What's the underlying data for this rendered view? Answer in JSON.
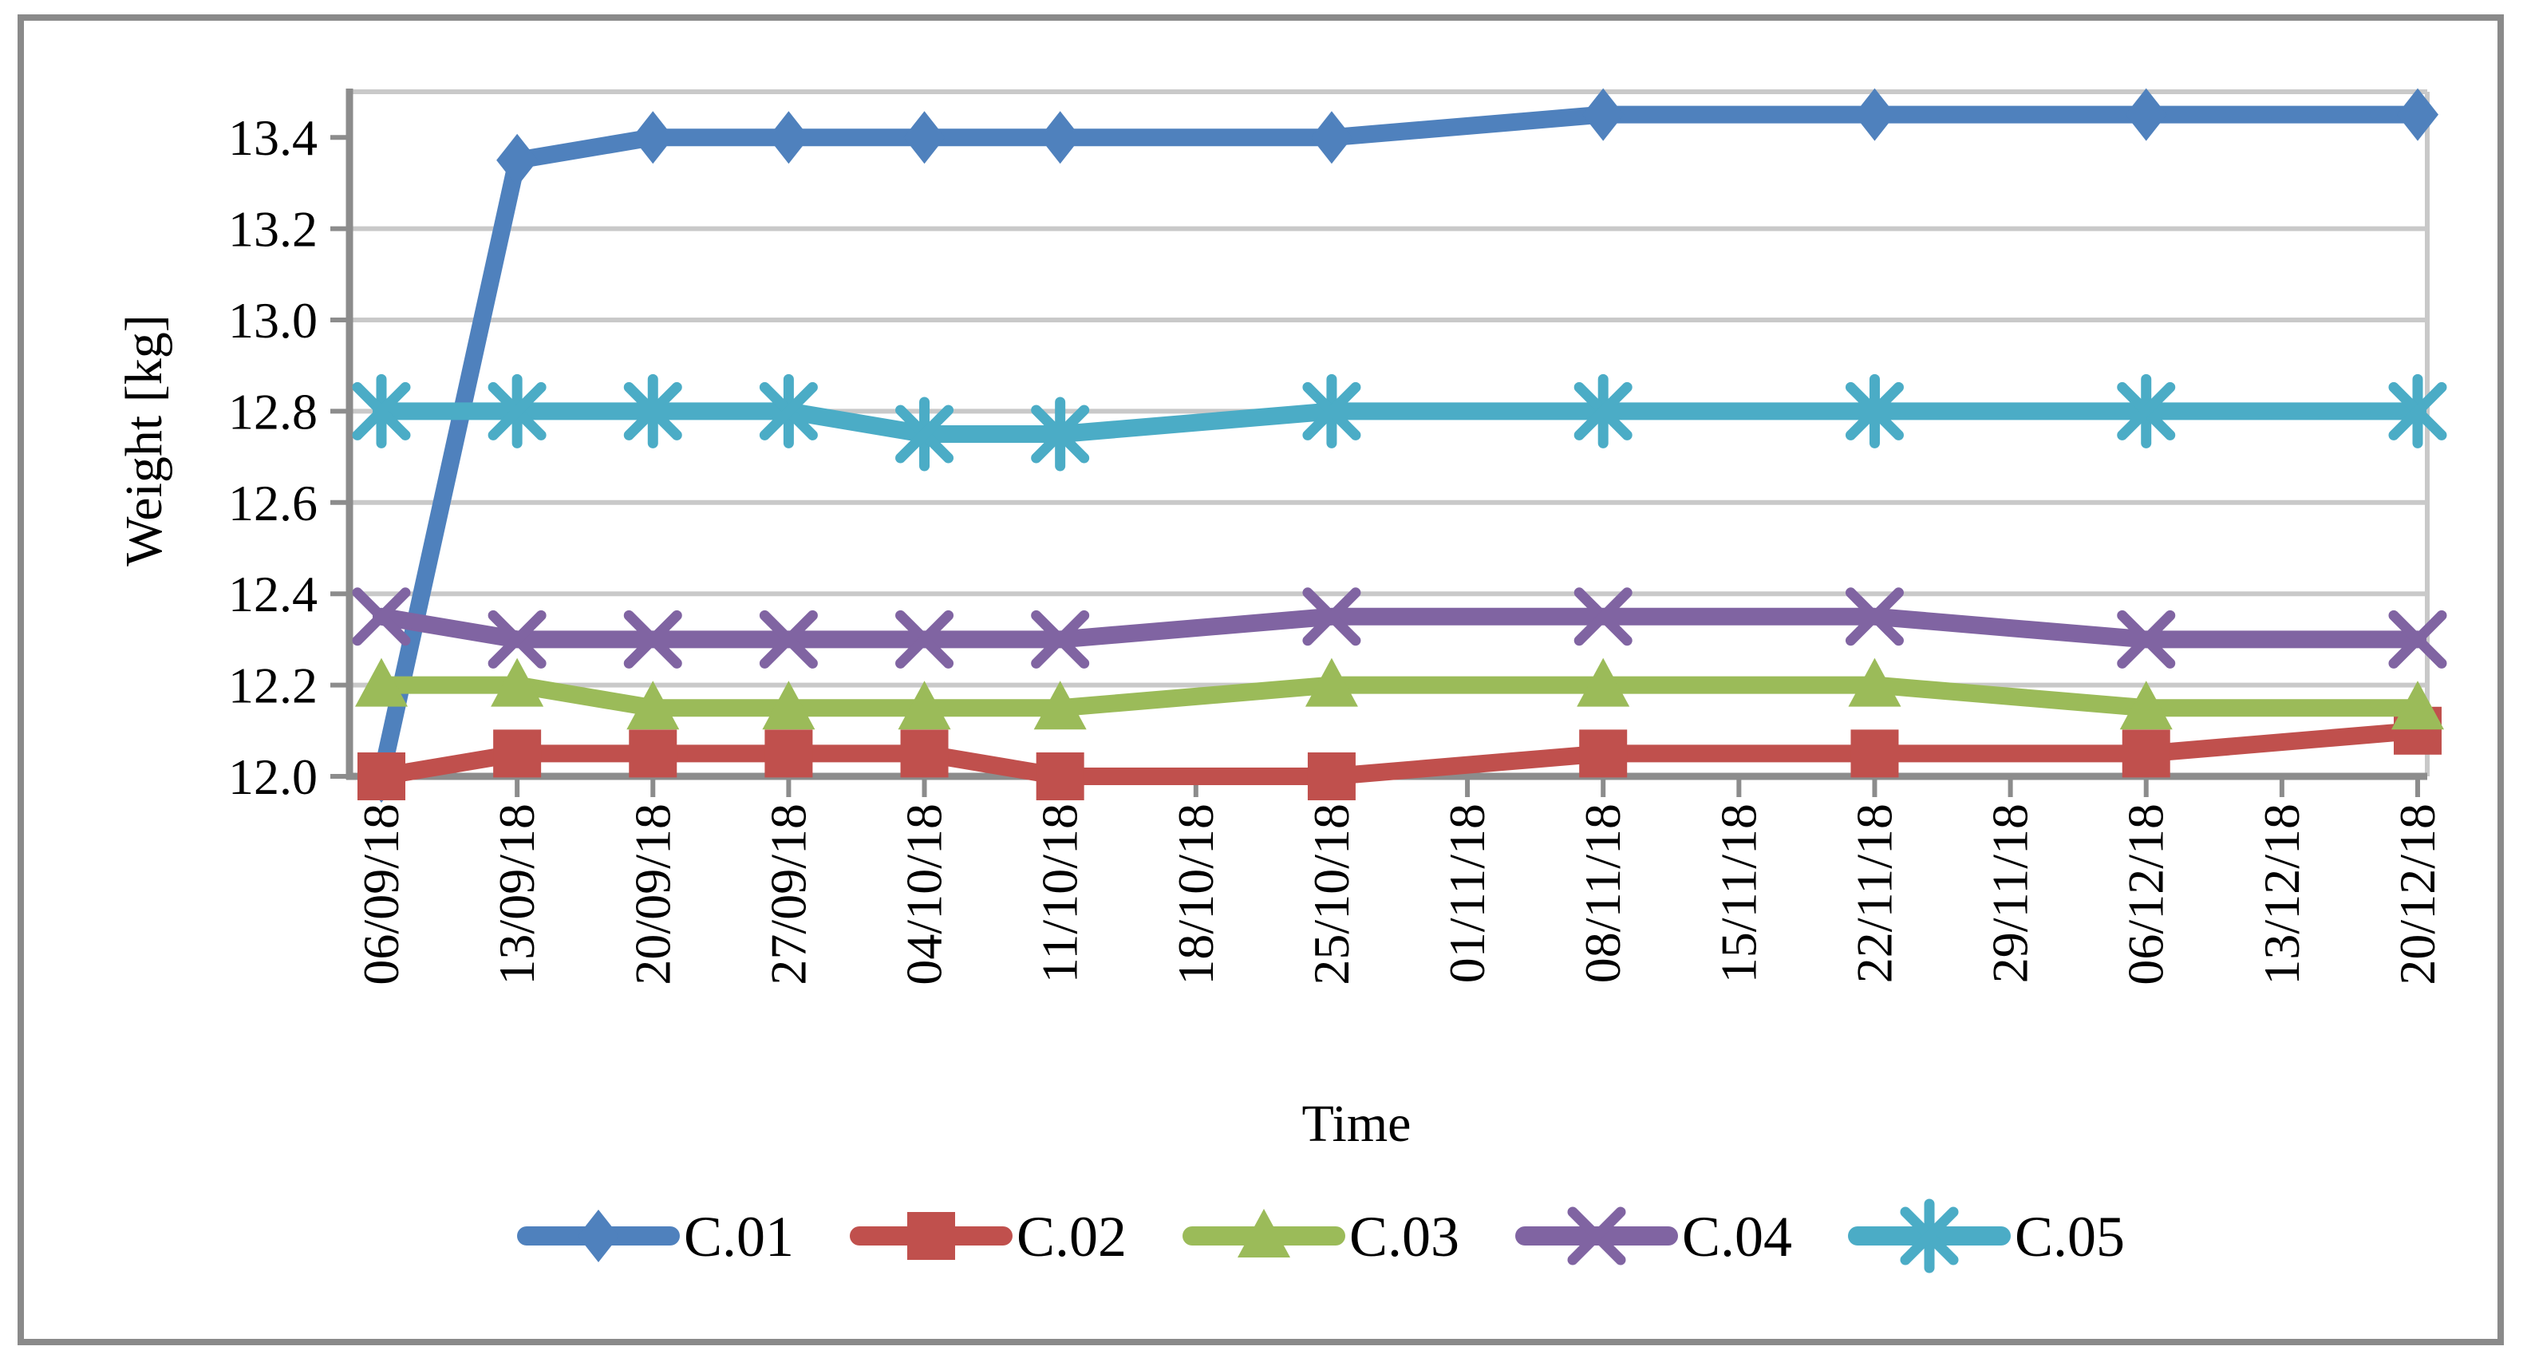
{
  "figure": {
    "background_color": "#FFFFFF",
    "border_color": "#8A8A8A",
    "axis_color": "#8C8C8C",
    "gridline_color": "#C9C9C9",
    "text_color": "#000000"
  },
  "chart_data": {
    "type": "line",
    "title": "",
    "xlabel": "Time",
    "ylabel": "Weight [kg]",
    "x_categories": [
      "06/09/18",
      "13/09/18",
      "20/09/18",
      "27/09/18",
      "04/10/18",
      "11/10/18",
      "18/10/18",
      "25/10/18",
      "01/11/18",
      "08/11/18",
      "15/11/18",
      "22/11/18",
      "29/11/18",
      "06/12/18",
      "13/12/18",
      "20/12/18"
    ],
    "measured_x_indices": [
      0,
      1,
      2,
      3,
      4,
      5,
      7,
      9,
      11,
      13,
      15
    ],
    "series": [
      {
        "name": "C.01",
        "color": "#4F81BD",
        "marker": "diamond",
        "values": [
          12.0,
          13.35,
          13.4,
          13.4,
          13.4,
          13.4,
          13.4,
          13.45,
          13.45,
          13.45,
          13.45
        ]
      },
      {
        "name": "C.02",
        "color": "#C0504D",
        "marker": "square",
        "values": [
          12.0,
          12.05,
          12.05,
          12.05,
          12.05,
          12.0,
          12.0,
          12.05,
          12.05,
          12.05,
          12.1
        ]
      },
      {
        "name": "C.03",
        "color": "#9BBB59",
        "marker": "triangle",
        "values": [
          12.2,
          12.2,
          12.15,
          12.15,
          12.15,
          12.15,
          12.2,
          12.2,
          12.2,
          12.15,
          12.15
        ]
      },
      {
        "name": "C.04",
        "color": "#8064A2",
        "marker": "x",
        "values": [
          12.35,
          12.3,
          12.3,
          12.3,
          12.3,
          12.3,
          12.35,
          12.35,
          12.35,
          12.3,
          12.3
        ]
      },
      {
        "name": "C.05",
        "color": "#4BACC6",
        "marker": "asterisk",
        "values": [
          12.8,
          12.8,
          12.8,
          12.8,
          12.75,
          12.75,
          12.8,
          12.8,
          12.8,
          12.8,
          12.8
        ]
      }
    ],
    "ylim": [
      12.0,
      13.5
    ],
    "ytick_step": 0.2,
    "ytick_labels": [
      "12.0",
      "12.2",
      "12.4",
      "12.6",
      "12.8",
      "13.0",
      "13.2",
      "13.4"
    ],
    "grid": true,
    "legend_position": "bottom",
    "legend_labels": [
      "C.01",
      "C.02",
      "C.03",
      "C.04",
      "C.05"
    ]
  }
}
